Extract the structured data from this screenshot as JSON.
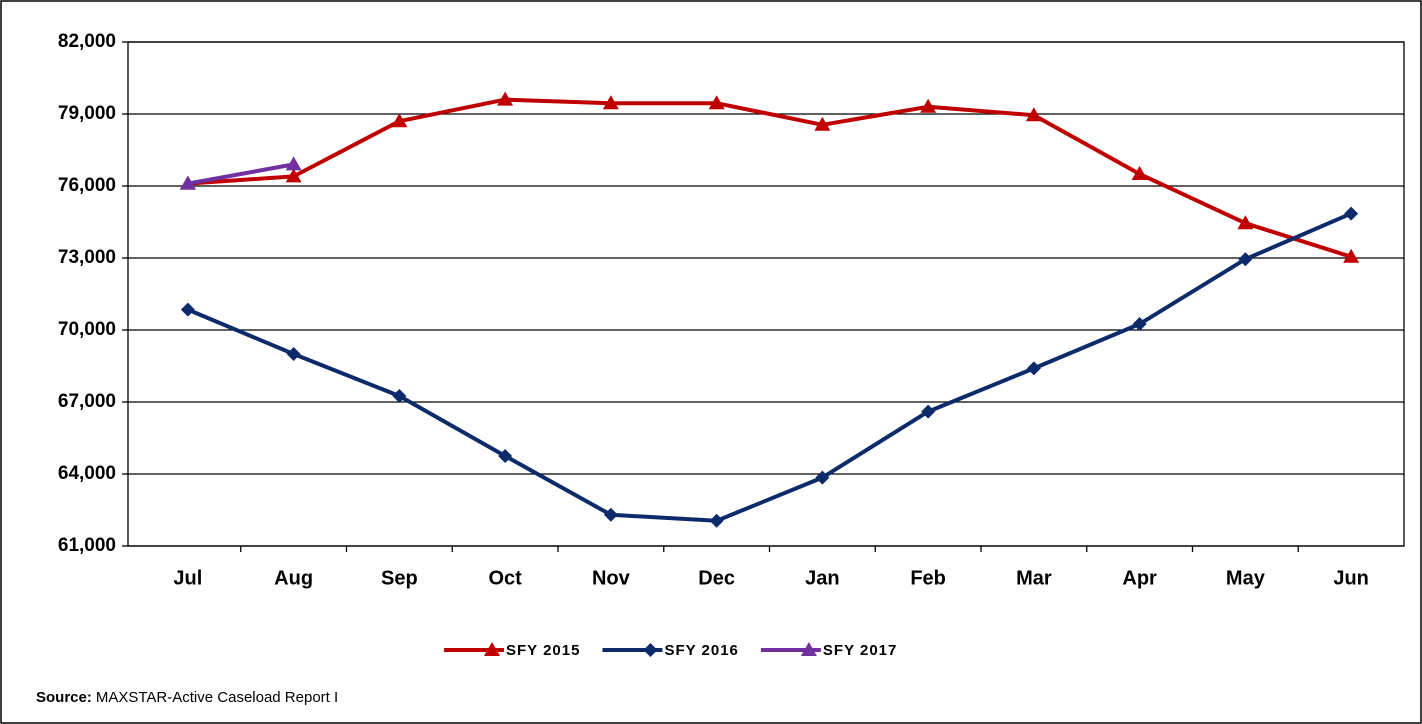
{
  "chart_data": {
    "type": "line",
    "categories": [
      "Jul",
      "Aug",
      "Sep",
      "Oct",
      "Nov",
      "Dec",
      "Jan",
      "Feb",
      "Mar",
      "Apr",
      "May",
      "Jun"
    ],
    "series": [
      {
        "name": "SFY 2015",
        "color": "#c00000",
        "marker": "triangle",
        "values": [
          76100,
          76400,
          78700,
          79600,
          79450,
          79450,
          78550,
          79300,
          78950,
          76500,
          74450,
          73050
        ]
      },
      {
        "name": "SFY 2016",
        "color": "#0d2a6b",
        "marker": "diamond",
        "values": [
          70850,
          69000,
          67250,
          64750,
          62300,
          62050,
          63850,
          66600,
          68400,
          70250,
          72950,
          74850
        ]
      },
      {
        "name": "SFY 2017",
        "color": "#7030a0",
        "marker": "triangle",
        "values": [
          76100,
          76900,
          null,
          null,
          null,
          null,
          null,
          null,
          null,
          null,
          null,
          null
        ]
      }
    ],
    "ylim": [
      61000,
      82000
    ],
    "yticks": [
      {
        "value": 61000,
        "label": "61,000"
      },
      {
        "value": 64000,
        "label": "64,000"
      },
      {
        "value": 67000,
        "label": "67,000"
      },
      {
        "value": 70000,
        "label": "70,000"
      },
      {
        "value": 73000,
        "label": "73,000"
      },
      {
        "value": 76000,
        "label": "76,000"
      },
      {
        "value": 79000,
        "label": "79,000"
      },
      {
        "value": 82000,
        "label": "82,000"
      }
    ],
    "grid": true,
    "legend": "bottom",
    "source_label": "Source:",
    "source": "MAXSTAR-Active Caseload Report I"
  }
}
